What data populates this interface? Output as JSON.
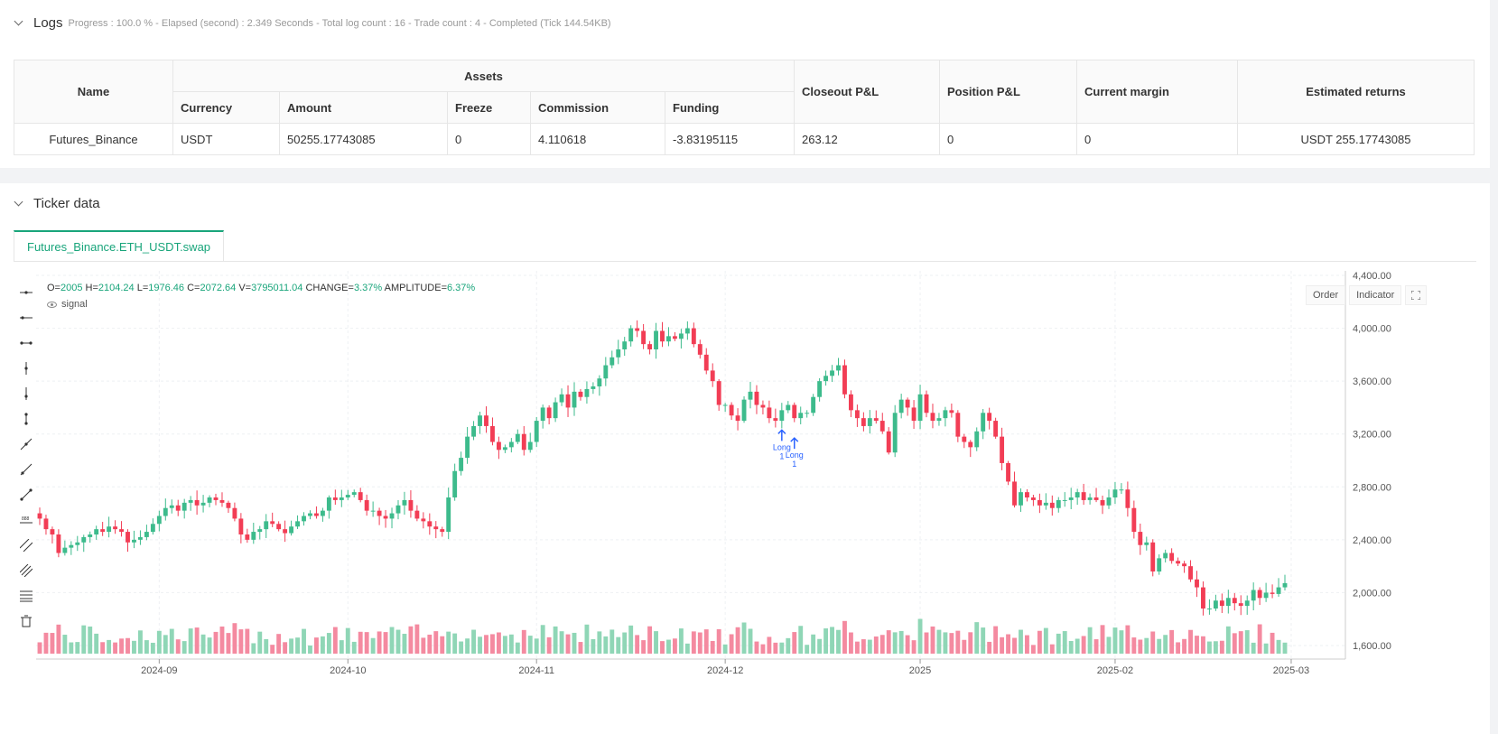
{
  "logs": {
    "title": "Logs",
    "summary": "Progress : 100.0 % - Elapsed (second) : 2.349   Seconds - Total log count : 16 - Trade count : 4 - Completed (Tick 144.54KB)"
  },
  "assets_table": {
    "headers": {
      "name": "Name",
      "assets": "Assets",
      "currency": "Currency",
      "amount": "Amount",
      "freeze": "Freeze",
      "commission": "Commission",
      "funding": "Funding",
      "closeout_pl": "Closeout P&L",
      "position_pl": "Position P&L",
      "current_margin": "Current margin",
      "estimated_returns": "Estimated returns"
    },
    "row": {
      "name": "Futures_Binance",
      "currency": "USDT",
      "amount": "50255.17743085",
      "freeze": "0",
      "commission": "4.110618",
      "funding": "-3.83195115",
      "closeout_pl": "263.12",
      "position_pl": "0",
      "current_margin": "0",
      "estimated_returns": "USDT 255.17743085"
    }
  },
  "ticker": {
    "title": "Ticker data",
    "tab": "Futures_Binance.ETH_USDT.swap",
    "legend": {
      "o_label": "O=",
      "o": "2005",
      "h_label": "H=",
      "h": "2104.24",
      "l_label": "L=",
      "l": "1976.46",
      "c_label": "C=",
      "c": "2072.64",
      "v_label": "V=",
      "v": "3795011.04",
      "change_label": "CHANGE=",
      "change": "3.37%",
      "amp_label": "AMPLITUDE=",
      "amp": "6.37%"
    },
    "signal_label": "signal",
    "buttons": {
      "order": "Order",
      "indicator": "Indicator"
    }
  },
  "colors": {
    "up": "#26a69a",
    "up_fill": "#3dbb8c",
    "down": "#f23d55",
    "accent": "#19a57b",
    "signal": "#2962ff"
  },
  "chart_data": {
    "type": "candlestick",
    "y_ticks": [
      "4,400.00",
      "4,000.00",
      "3,600.00",
      "3,200.00",
      "2,800.00",
      "2,400.00",
      "2,000.00",
      "1,600.00"
    ],
    "y_values": [
      4400,
      4000,
      3600,
      3200,
      2800,
      2400,
      2000,
      1600
    ],
    "x_ticks": [
      "2024-09",
      "2024-10",
      "2024-11",
      "2024-12",
      "2025",
      "2025-02",
      "2025-03"
    ],
    "x_tick_index": [
      19,
      49,
      79,
      109,
      140,
      171,
      199
    ],
    "signals": [
      {
        "index": 118,
        "label": "Long",
        "qty": "1"
      },
      {
        "index": 120,
        "label": "Long",
        "qty": "1"
      }
    ],
    "closes": [
      2560,
      2480,
      2440,
      2300,
      2340,
      2360,
      2380,
      2420,
      2440,
      2480,
      2460,
      2500,
      2480,
      2460,
      2380,
      2400,
      2420,
      2460,
      2520,
      2580,
      2640,
      2660,
      2620,
      2680,
      2700,
      2660,
      2680,
      2720,
      2700,
      2680,
      2640,
      2560,
      2440,
      2400,
      2460,
      2480,
      2540,
      2520,
      2480,
      2450,
      2500,
      2540,
      2580,
      2600,
      2580,
      2620,
      2720,
      2700,
      2720,
      2740,
      2760,
      2700,
      2620,
      2620,
      2580,
      2560,
      2600,
      2660,
      2700,
      2620,
      2560,
      2540,
      2500,
      2480,
      2460,
      2720,
      2920,
      3020,
      3180,
      3260,
      3340,
      3260,
      3140,
      3080,
      3100,
      3140,
      3200,
      3080,
      3140,
      3300,
      3400,
      3320,
      3440,
      3500,
      3400,
      3520,
      3480,
      3540,
      3560,
      3620,
      3720,
      3780,
      3840,
      3900,
      4000,
      3980,
      3880,
      3840,
      3980,
      3900,
      3940,
      3920,
      3960,
      4000,
      3880,
      3800,
      3680,
      3600,
      3420,
      3420,
      3340,
      3300,
      3460,
      3520,
      3420,
      3400,
      3320,
      3300,
      3380,
      3420,
      3320,
      3360,
      3360,
      3480,
      3600,
      3640,
      3680,
      3720,
      3500,
      3380,
      3320,
      3260,
      3320,
      3300,
      3220,
      3060,
      3360,
      3460,
      3400,
      3300,
      3500,
      3360,
      3300,
      3320,
      3380,
      3360,
      3180,
      3140,
      3100,
      3220,
      3360,
      3300,
      3180,
      2980,
      2840,
      2660,
      2760,
      2720,
      2700,
      2660,
      2680,
      2640,
      2700,
      2700,
      2720,
      2760,
      2700,
      2720,
      2700,
      2660,
      2720,
      2780,
      2780,
      2640,
      2460,
      2360,
      2380,
      2160,
      2260,
      2300,
      2240,
      2220,
      2200,
      2100,
      2040,
      1880,
      1880,
      1940,
      1900,
      1960,
      1920,
      1900,
      1940,
      2020,
      1960,
      2000,
      1990,
      2040,
      2072
    ]
  }
}
